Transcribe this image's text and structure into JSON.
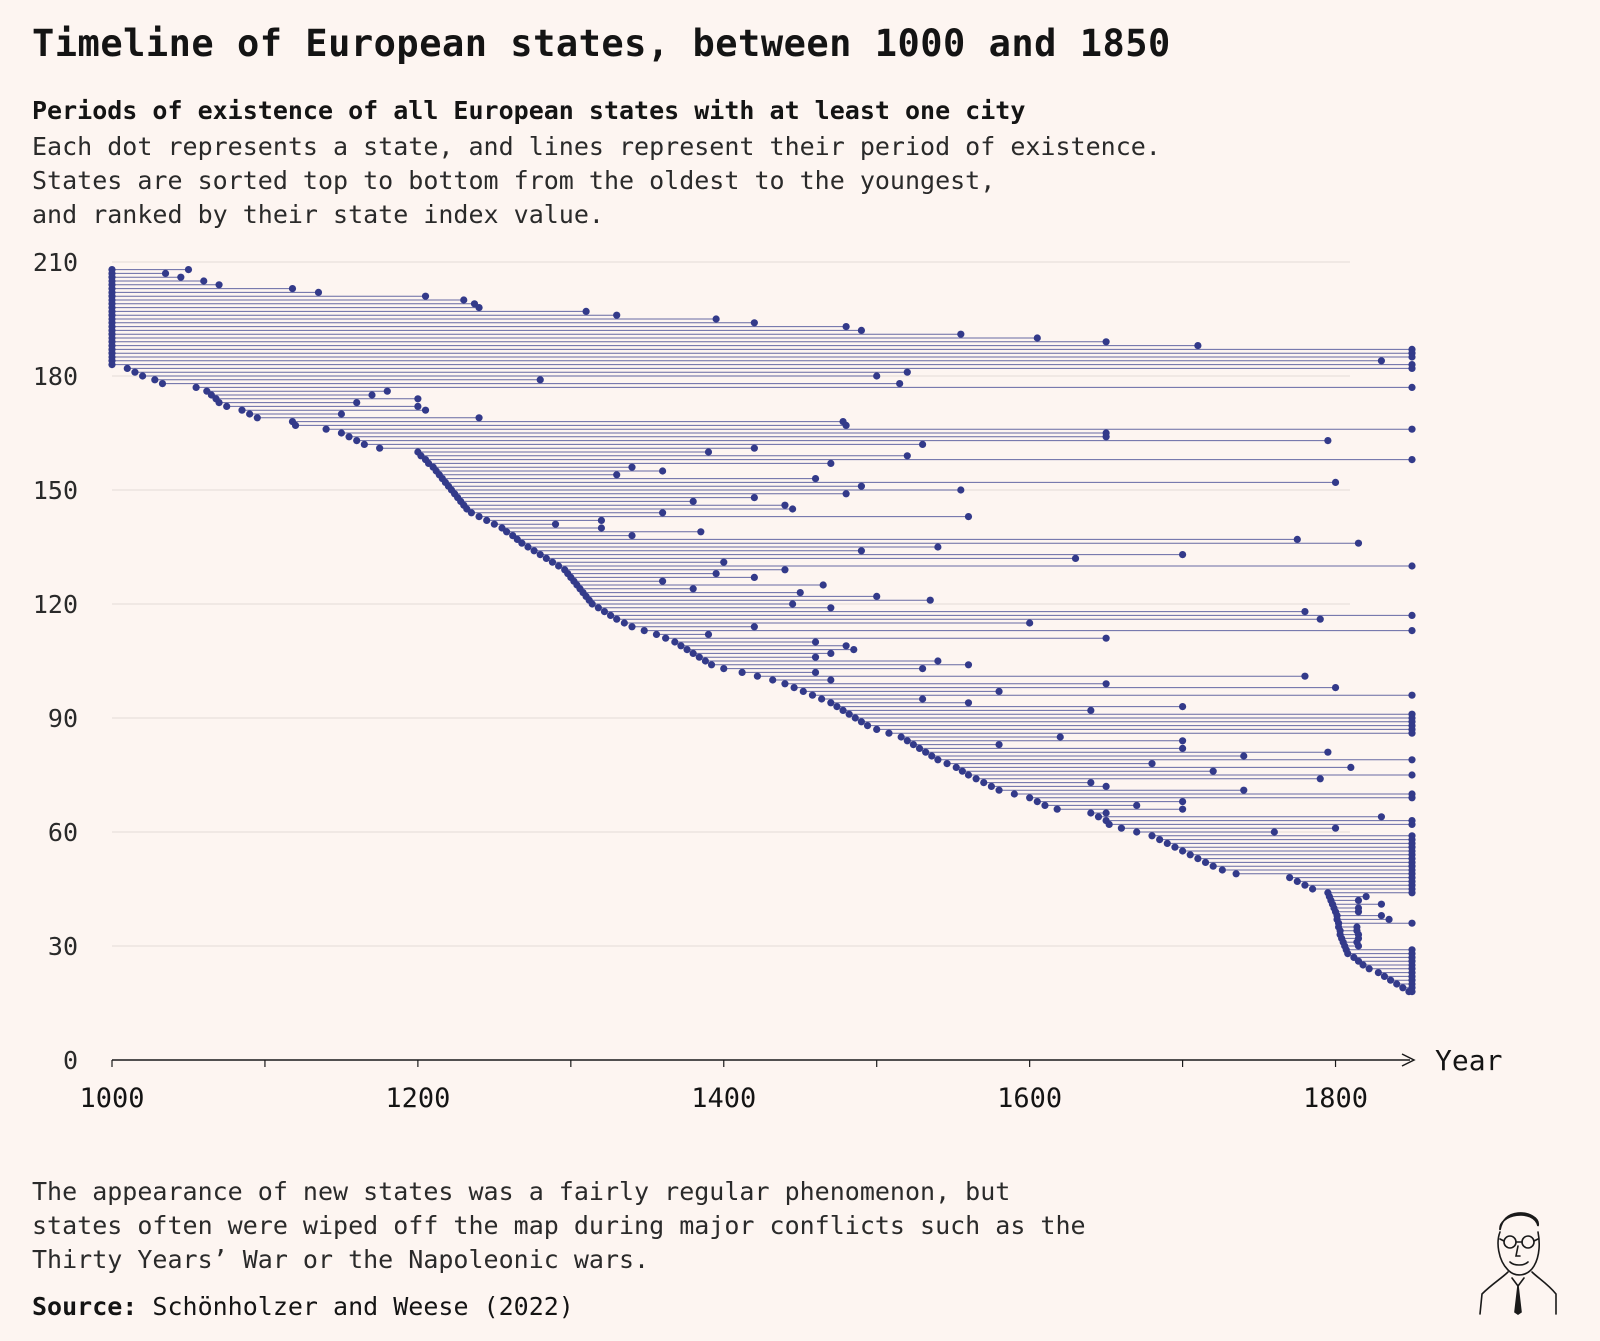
{
  "title": "Timeline of European states, between 1000 and 1850",
  "subtitle": "Periods of existence of all European states with at least one city",
  "description": [
    "Each dot represents a state, and lines represent their period of existence.",
    "States are sorted top to bottom from the oldest to the youngest,",
    "and ranked by their state index value."
  ],
  "note": [
    "The appearance of new states was a fairly regular phenomenon, but",
    "states often were wiped off the map during major conflicts such as the",
    "Thirty Years’ War or the Napoleonic wars."
  ],
  "source_label": "Source:",
  "source_text": "Schönholzer and Weese (2022)",
  "colors": {
    "background": "#fdf5f1",
    "series": "#333a8a",
    "grid": "#e2dad6",
    "axis": "#1a1a1a"
  },
  "chart_data": {
    "type": "scatter",
    "description_of_marks": "timeline (horizontal segment per state from creation year to end year, with dots at city observations)",
    "xlabel": "Year",
    "ylabel": "",
    "xlim": [
      1000,
      1850
    ],
    "ylim": [
      0,
      210
    ],
    "xticks": [
      1000,
      1200,
      1400,
      1600,
      1800
    ],
    "yticks": [
      0,
      30,
      60,
      90,
      120,
      150,
      180,
      210
    ],
    "grid": "horizontal",
    "states": [
      {
        "y": 208,
        "start": 1000,
        "end": 1050
      },
      {
        "y": 207,
        "start": 1000,
        "end": 1035
      },
      {
        "y": 206,
        "start": 1000,
        "end": 1045
      },
      {
        "y": 205,
        "start": 1000,
        "end": 1060
      },
      {
        "y": 204,
        "start": 1000,
        "end": 1070
      },
      {
        "y": 203,
        "start": 1000,
        "end": 1118
      },
      {
        "y": 202,
        "start": 1000,
        "end": 1135
      },
      {
        "y": 201,
        "start": 1000,
        "end": 1205
      },
      {
        "y": 200,
        "start": 1000,
        "end": 1230
      },
      {
        "y": 199,
        "start": 1000,
        "end": 1237
      },
      {
        "y": 198,
        "start": 1000,
        "end": 1240
      },
      {
        "y": 197,
        "start": 1000,
        "end": 1310
      },
      {
        "y": 196,
        "start": 1000,
        "end": 1330
      },
      {
        "y": 195,
        "start": 1000,
        "end": 1395
      },
      {
        "y": 194,
        "start": 1000,
        "end": 1420
      },
      {
        "y": 193,
        "start": 1000,
        "end": 1480
      },
      {
        "y": 192,
        "start": 1000,
        "end": 1490
      },
      {
        "y": 191,
        "start": 1000,
        "end": 1555
      },
      {
        "y": 190,
        "start": 1000,
        "end": 1605
      },
      {
        "y": 189,
        "start": 1000,
        "end": 1650
      },
      {
        "y": 188,
        "start": 1000,
        "end": 1710
      },
      {
        "y": 187,
        "start": 1000,
        "end": 1850
      },
      {
        "y": 186,
        "start": 1000,
        "end": 1850
      },
      {
        "y": 185,
        "start": 1000,
        "end": 1850
      },
      {
        "y": 184,
        "start": 1000,
        "end": 1830
      },
      {
        "y": 183,
        "start": 1000,
        "end": 1850
      },
      {
        "y": 182,
        "start": 1010,
        "end": 1850
      },
      {
        "y": 181,
        "start": 1015,
        "end": 1520
      },
      {
        "y": 180,
        "start": 1020,
        "end": 1500
      },
      {
        "y": 179,
        "start": 1028,
        "end": 1280
      },
      {
        "y": 178,
        "start": 1033,
        "end": 1515
      },
      {
        "y": 177,
        "start": 1055,
        "end": 1850
      },
      {
        "y": 176,
        "start": 1062,
        "end": 1180
      },
      {
        "y": 175,
        "start": 1065,
        "end": 1170
      },
      {
        "y": 174,
        "start": 1068,
        "end": 1200
      },
      {
        "y": 173,
        "start": 1070,
        "end": 1160
      },
      {
        "y": 172,
        "start": 1075,
        "end": 1200
      },
      {
        "y": 171,
        "start": 1085,
        "end": 1205
      },
      {
        "y": 170,
        "start": 1090,
        "end": 1150
      },
      {
        "y": 169,
        "start": 1095,
        "end": 1240
      },
      {
        "y": 168,
        "start": 1118,
        "end": 1478
      },
      {
        "y": 167,
        "start": 1120,
        "end": 1480
      },
      {
        "y": 166,
        "start": 1140,
        "end": 1850
      },
      {
        "y": 165,
        "start": 1150,
        "end": 1650
      },
      {
        "y": 164,
        "start": 1155,
        "end": 1650
      },
      {
        "y": 163,
        "start": 1160,
        "end": 1795
      },
      {
        "y": 162,
        "start": 1165,
        "end": 1530
      },
      {
        "y": 161,
        "start": 1175,
        "end": 1420
      },
      {
        "y": 160,
        "start": 1200,
        "end": 1390
      },
      {
        "y": 159,
        "start": 1202,
        "end": 1520
      },
      {
        "y": 158,
        "start": 1205,
        "end": 1850
      },
      {
        "y": 157,
        "start": 1207,
        "end": 1470
      },
      {
        "y": 156,
        "start": 1210,
        "end": 1340
      },
      {
        "y": 155,
        "start": 1212,
        "end": 1360
      },
      {
        "y": 154,
        "start": 1214,
        "end": 1330
      },
      {
        "y": 153,
        "start": 1216,
        "end": 1460
      },
      {
        "y": 152,
        "start": 1218,
        "end": 1800
      },
      {
        "y": 151,
        "start": 1220,
        "end": 1490
      },
      {
        "y": 150,
        "start": 1222,
        "end": 1555
      },
      {
        "y": 149,
        "start": 1224,
        "end": 1480
      },
      {
        "y": 148,
        "start": 1226,
        "end": 1420
      },
      {
        "y": 147,
        "start": 1228,
        "end": 1380
      },
      {
        "y": 146,
        "start": 1230,
        "end": 1440
      },
      {
        "y": 145,
        "start": 1232,
        "end": 1445
      },
      {
        "y": 144,
        "start": 1235,
        "end": 1360
      },
      {
        "y": 143,
        "start": 1240,
        "end": 1560
      },
      {
        "y": 142,
        "start": 1245,
        "end": 1320
      },
      {
        "y": 141,
        "start": 1250,
        "end": 1290
      },
      {
        "y": 140,
        "start": 1255,
        "end": 1320
      },
      {
        "y": 139,
        "start": 1258,
        "end": 1385
      },
      {
        "y": 138,
        "start": 1262,
        "end": 1340
      },
      {
        "y": 137,
        "start": 1265,
        "end": 1775
      },
      {
        "y": 136,
        "start": 1268,
        "end": 1815
      },
      {
        "y": 135,
        "start": 1272,
        "end": 1540
      },
      {
        "y": 134,
        "start": 1276,
        "end": 1490
      },
      {
        "y": 133,
        "start": 1280,
        "end": 1700
      },
      {
        "y": 132,
        "start": 1284,
        "end": 1630
      },
      {
        "y": 131,
        "start": 1288,
        "end": 1400
      },
      {
        "y": 130,
        "start": 1292,
        "end": 1850
      },
      {
        "y": 129,
        "start": 1296,
        "end": 1440
      },
      {
        "y": 128,
        "start": 1298,
        "end": 1395
      },
      {
        "y": 127,
        "start": 1300,
        "end": 1420
      },
      {
        "y": 126,
        "start": 1302,
        "end": 1360
      },
      {
        "y": 125,
        "start": 1304,
        "end": 1465
      },
      {
        "y": 124,
        "start": 1306,
        "end": 1380
      },
      {
        "y": 123,
        "start": 1308,
        "end": 1450
      },
      {
        "y": 122,
        "start": 1310,
        "end": 1500
      },
      {
        "y": 121,
        "start": 1312,
        "end": 1535
      },
      {
        "y": 120,
        "start": 1314,
        "end": 1445
      },
      {
        "y": 119,
        "start": 1318,
        "end": 1470
      },
      {
        "y": 118,
        "start": 1322,
        "end": 1780
      },
      {
        "y": 117,
        "start": 1326,
        "end": 1850
      },
      {
        "y": 116,
        "start": 1330,
        "end": 1790
      },
      {
        "y": 115,
        "start": 1335,
        "end": 1600
      },
      {
        "y": 114,
        "start": 1340,
        "end": 1420
      },
      {
        "y": 113,
        "start": 1348,
        "end": 1850
      },
      {
        "y": 112,
        "start": 1356,
        "end": 1390
      },
      {
        "y": 111,
        "start": 1362,
        "end": 1650
      },
      {
        "y": 110,
        "start": 1368,
        "end": 1460
      },
      {
        "y": 109,
        "start": 1372,
        "end": 1480
      },
      {
        "y": 108,
        "start": 1376,
        "end": 1485
      },
      {
        "y": 107,
        "start": 1380,
        "end": 1470
      },
      {
        "y": 106,
        "start": 1384,
        "end": 1460
      },
      {
        "y": 105,
        "start": 1388,
        "end": 1540
      },
      {
        "y": 104,
        "start": 1392,
        "end": 1560
      },
      {
        "y": 103,
        "start": 1400,
        "end": 1530
      },
      {
        "y": 102,
        "start": 1412,
        "end": 1460
      },
      {
        "y": 101,
        "start": 1422,
        "end": 1780
      },
      {
        "y": 100,
        "start": 1432,
        "end": 1470
      },
      {
        "y": 99,
        "start": 1440,
        "end": 1650
      },
      {
        "y": 98,
        "start": 1446,
        "end": 1800
      },
      {
        "y": 97,
        "start": 1452,
        "end": 1580
      },
      {
        "y": 96,
        "start": 1458,
        "end": 1850
      },
      {
        "y": 95,
        "start": 1464,
        "end": 1530
      },
      {
        "y": 94,
        "start": 1470,
        "end": 1560
      },
      {
        "y": 93,
        "start": 1474,
        "end": 1700
      },
      {
        "y": 92,
        "start": 1478,
        "end": 1640
      },
      {
        "y": 91,
        "start": 1482,
        "end": 1850
      },
      {
        "y": 90,
        "start": 1486,
        "end": 1850
      },
      {
        "y": 89,
        "start": 1490,
        "end": 1850
      },
      {
        "y": 88,
        "start": 1494,
        "end": 1850
      },
      {
        "y": 87,
        "start": 1500,
        "end": 1850
      },
      {
        "y": 86,
        "start": 1508,
        "end": 1850
      },
      {
        "y": 85,
        "start": 1516,
        "end": 1620
      },
      {
        "y": 84,
        "start": 1520,
        "end": 1700
      },
      {
        "y": 83,
        "start": 1524,
        "end": 1580
      },
      {
        "y": 82,
        "start": 1528,
        "end": 1700
      },
      {
        "y": 81,
        "start": 1532,
        "end": 1795
      },
      {
        "y": 80,
        "start": 1536,
        "end": 1740
      },
      {
        "y": 79,
        "start": 1540,
        "end": 1850
      },
      {
        "y": 78,
        "start": 1546,
        "end": 1680
      },
      {
        "y": 77,
        "start": 1552,
        "end": 1810
      },
      {
        "y": 76,
        "start": 1556,
        "end": 1720
      },
      {
        "y": 75,
        "start": 1560,
        "end": 1850
      },
      {
        "y": 74,
        "start": 1565,
        "end": 1790
      },
      {
        "y": 73,
        "start": 1570,
        "end": 1640
      },
      {
        "y": 72,
        "start": 1575,
        "end": 1650
      },
      {
        "y": 71,
        "start": 1580,
        "end": 1740
      },
      {
        "y": 70,
        "start": 1590,
        "end": 1850
      },
      {
        "y": 69,
        "start": 1600,
        "end": 1850
      },
      {
        "y": 68,
        "start": 1605,
        "end": 1700
      },
      {
        "y": 67,
        "start": 1610,
        "end": 1670
      },
      {
        "y": 66,
        "start": 1618,
        "end": 1700
      },
      {
        "y": 65,
        "start": 1640,
        "end": 1650
      },
      {
        "y": 64,
        "start": 1645,
        "end": 1830
      },
      {
        "y": 63,
        "start": 1650,
        "end": 1850
      },
      {
        "y": 62,
        "start": 1652,
        "end": 1850
      },
      {
        "y": 61,
        "start": 1660,
        "end": 1800
      },
      {
        "y": 60,
        "start": 1670,
        "end": 1760
      },
      {
        "y": 59,
        "start": 1680,
        "end": 1850
      },
      {
        "y": 58,
        "start": 1685,
        "end": 1850
      },
      {
        "y": 57,
        "start": 1690,
        "end": 1850
      },
      {
        "y": 56,
        "start": 1695,
        "end": 1850
      },
      {
        "y": 55,
        "start": 1700,
        "end": 1850
      },
      {
        "y": 54,
        "start": 1705,
        "end": 1850
      },
      {
        "y": 53,
        "start": 1710,
        "end": 1850
      },
      {
        "y": 52,
        "start": 1715,
        "end": 1850
      },
      {
        "y": 51,
        "start": 1720,
        "end": 1850
      },
      {
        "y": 50,
        "start": 1726,
        "end": 1850
      },
      {
        "y": 49,
        "start": 1735,
        "end": 1850
      },
      {
        "y": 48,
        "start": 1770,
        "end": 1850
      },
      {
        "y": 47,
        "start": 1775,
        "end": 1850
      },
      {
        "y": 46,
        "start": 1780,
        "end": 1850
      },
      {
        "y": 45,
        "start": 1785,
        "end": 1850
      },
      {
        "y": 44,
        "start": 1795,
        "end": 1850
      },
      {
        "y": 43,
        "start": 1796,
        "end": 1820
      },
      {
        "y": 42,
        "start": 1797,
        "end": 1815
      },
      {
        "y": 41,
        "start": 1798,
        "end": 1830
      },
      {
        "y": 40,
        "start": 1799,
        "end": 1815
      },
      {
        "y": 39,
        "start": 1800,
        "end": 1815
      },
      {
        "y": 38,
        "start": 1801,
        "end": 1830
      },
      {
        "y": 37,
        "start": 1801,
        "end": 1835
      },
      {
        "y": 36,
        "start": 1802,
        "end": 1850
      },
      {
        "y": 35,
        "start": 1802,
        "end": 1814
      },
      {
        "y": 34,
        "start": 1803,
        "end": 1814
      },
      {
        "y": 33,
        "start": 1803,
        "end": 1815
      },
      {
        "y": 32,
        "start": 1804,
        "end": 1815
      },
      {
        "y": 31,
        "start": 1805,
        "end": 1814
      },
      {
        "y": 30,
        "start": 1806,
        "end": 1815
      },
      {
        "y": 29,
        "start": 1807,
        "end": 1850
      },
      {
        "y": 28,
        "start": 1808,
        "end": 1850
      },
      {
        "y": 27,
        "start": 1812,
        "end": 1850
      },
      {
        "y": 26,
        "start": 1815,
        "end": 1850
      },
      {
        "y": 25,
        "start": 1818,
        "end": 1850
      },
      {
        "y": 24,
        "start": 1822,
        "end": 1850
      },
      {
        "y": 23,
        "start": 1828,
        "end": 1850
      },
      {
        "y": 22,
        "start": 1832,
        "end": 1850
      },
      {
        "y": 21,
        "start": 1836,
        "end": 1850
      },
      {
        "y": 20,
        "start": 1840,
        "end": 1850
      },
      {
        "y": 19,
        "start": 1844,
        "end": 1850
      },
      {
        "y": 18,
        "start": 1848,
        "end": 1850
      }
    ]
  }
}
